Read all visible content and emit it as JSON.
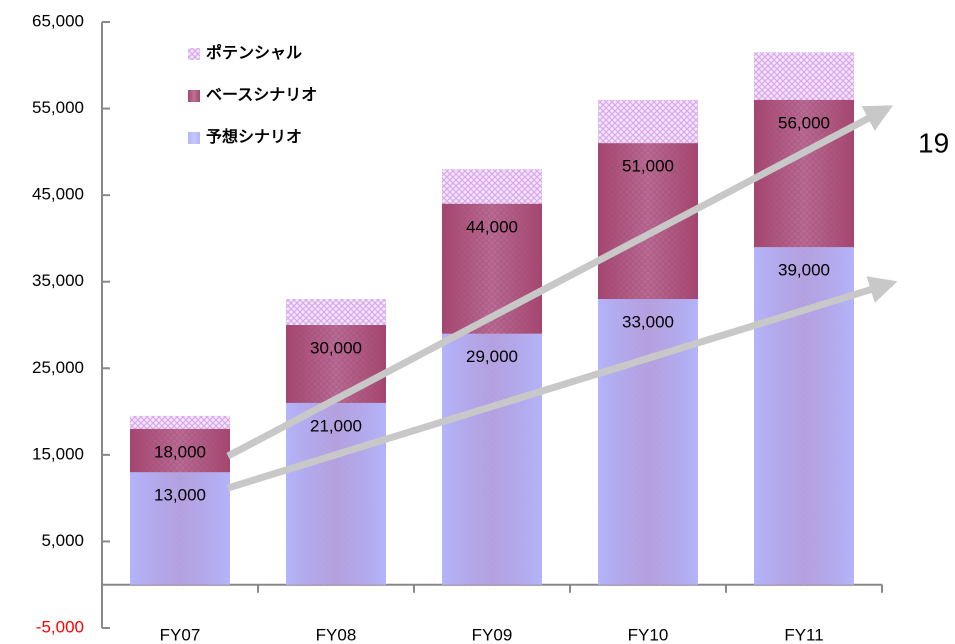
{
  "chart_data": {
    "type": "bar",
    "overlap": true,
    "categories": [
      "FY07",
      "FY08",
      "FY09",
      "FY10",
      "FY11"
    ],
    "series": [
      {
        "name": "予想シナリオ",
        "color": "#b4b4fa",
        "values": [
          13000,
          21000,
          29000,
          33000,
          39000
        ],
        "value_labels": [
          "13,000",
          "21,000",
          "29,000",
          "33,000",
          "39,000"
        ]
      },
      {
        "name": "ベースシナリオ",
        "color": "#a4466f",
        "values": [
          18000,
          30000,
          44000,
          51000,
          56000
        ],
        "value_labels": [
          "18,000",
          "30,000",
          "44,000",
          "51,000",
          "56,000"
        ]
      },
      {
        "name": "ポテンシャル",
        "color": "#d9a8ec",
        "values": [
          19500,
          33000,
          48000,
          56000,
          61500
        ]
      }
    ],
    "ylim": [
      -5000,
      65000
    ],
    "yticks": [
      {
        "value": -5000,
        "label": "-5,000"
      },
      {
        "value": 5000,
        "label": "5,000"
      },
      {
        "value": 15000,
        "label": "15,000"
      },
      {
        "value": 25000,
        "label": "25,000"
      },
      {
        "value": 35000,
        "label": "35,000"
      },
      {
        "value": 45000,
        "label": "45,000"
      },
      {
        "value": 55000,
        "label": "55,000"
      },
      {
        "value": 65000,
        "label": "65,000"
      }
    ],
    "negative_tick_color": "#ff0000",
    "legend": "upper left",
    "annotations": [
      "19"
    ]
  }
}
